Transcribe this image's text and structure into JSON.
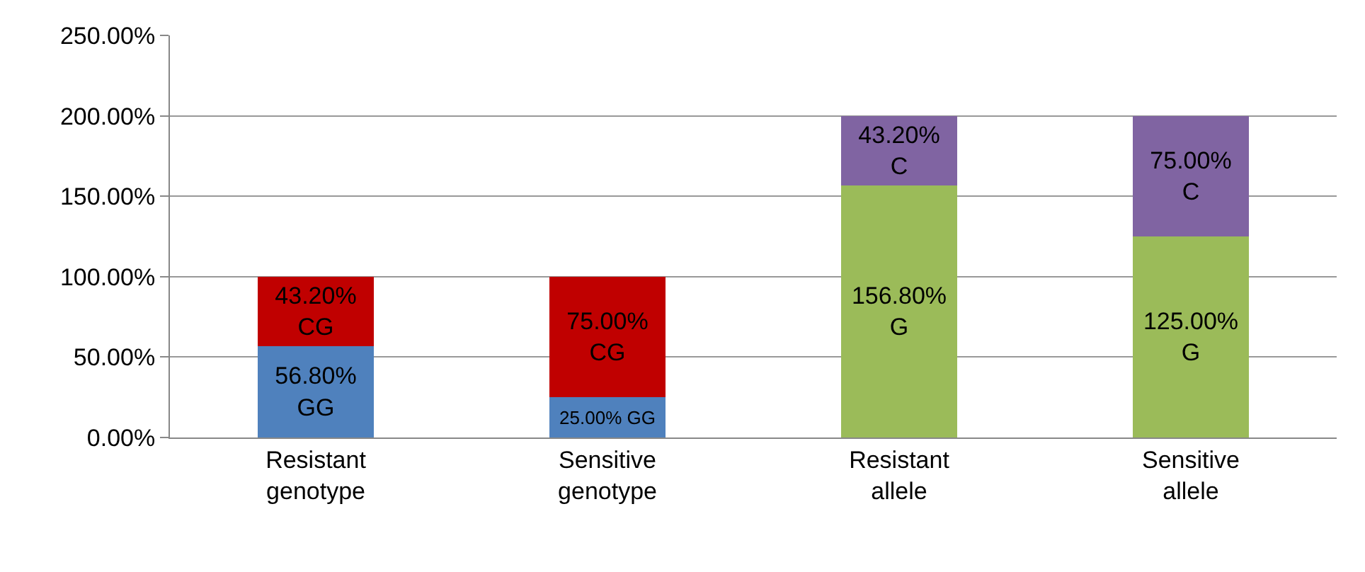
{
  "chart_data": {
    "type": "bar",
    "stacked": true,
    "categories": [
      "Resistant genotype",
      "Sensitive genotype",
      "Resistant allele",
      "Sensitive allele"
    ],
    "series": [
      {
        "name": "GG",
        "color": "#4f81bd",
        "values": [
          56.8,
          25,
          null,
          null
        ],
        "value_labels": [
          "56.80%",
          "25.00%",
          null,
          null
        ]
      },
      {
        "name": "CG",
        "color": "#c00000",
        "values": [
          43.2,
          75,
          null,
          null
        ],
        "value_labels": [
          "43.20%",
          "75.00%",
          null,
          null
        ]
      },
      {
        "name": "G",
        "color": "#9bbb59",
        "values": [
          null,
          null,
          156.8,
          125
        ],
        "value_labels": [
          null,
          null,
          "156.80%",
          "125.00%"
        ]
      },
      {
        "name": "C",
        "color": "#8064a2",
        "values": [
          null,
          null,
          43.2,
          75
        ],
        "value_labels": [
          null,
          null,
          "43.20%",
          "75.00%"
        ]
      }
    ],
    "ylim": [
      0,
      250
    ],
    "yticks": [
      {
        "value": 0,
        "label": "0.00%"
      },
      {
        "value": 50,
        "label": "50.00%"
      },
      {
        "value": 100,
        "label": "100.00%"
      },
      {
        "value": 150,
        "label": "150.00%"
      },
      {
        "value": 200,
        "label": "200.00%"
      },
      {
        "value": 250,
        "label": "250.00%"
      }
    ],
    "grid": "y",
    "legend": false
  }
}
